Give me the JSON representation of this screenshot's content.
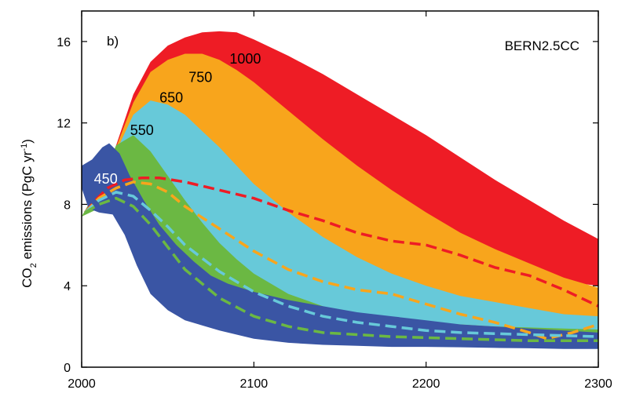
{
  "chart_data": {
    "type": "area",
    "panel_label": "b)",
    "model_label": "BERN2.5CC",
    "ylabel": {
      "main": "CO",
      "sub": "2",
      "rest": " emissions (PgC yr",
      "sup": "-1",
      "end": ")"
    },
    "xlim": [
      2000,
      2300
    ],
    "ylim": [
      0,
      17.5
    ],
    "xticks": [
      2000,
      2100,
      2200,
      2300
    ],
    "yticks": [
      0,
      4,
      8,
      12,
      16
    ],
    "grid": false,
    "bands": [
      {
        "name": "1000",
        "color": "#ee1c25",
        "label_at": [
          2095,
          15.1
        ],
        "label_color": "#000000",
        "upper": [
          [
            2000,
            7.4
          ],
          [
            2010,
            8.8
          ],
          [
            2020,
            10.9
          ],
          [
            2030,
            13.4
          ],
          [
            2040,
            15.0
          ],
          [
            2050,
            15.8
          ],
          [
            2060,
            16.2
          ],
          [
            2070,
            16.45
          ],
          [
            2080,
            16.5
          ],
          [
            2090,
            16.45
          ],
          [
            2100,
            16.1
          ],
          [
            2120,
            15.3
          ],
          [
            2140,
            14.4
          ],
          [
            2160,
            13.4
          ],
          [
            2180,
            12.4
          ],
          [
            2200,
            11.4
          ],
          [
            2220,
            10.3
          ],
          [
            2240,
            9.2
          ],
          [
            2260,
            8.2
          ],
          [
            2280,
            7.2
          ],
          [
            2300,
            6.3
          ]
        ],
        "lower": [
          [
            2000,
            7.4
          ],
          [
            2010,
            8.1
          ],
          [
            2020,
            9.0
          ],
          [
            2030,
            9.3
          ],
          [
            2040,
            9.4
          ],
          [
            2050,
            9.3
          ],
          [
            2060,
            9.1
          ],
          [
            2080,
            8.8
          ],
          [
            2100,
            8.3
          ],
          [
            2120,
            7.8
          ],
          [
            2140,
            7.3
          ],
          [
            2160,
            6.8
          ],
          [
            2180,
            6.3
          ],
          [
            2200,
            5.9
          ],
          [
            2220,
            5.4
          ],
          [
            2240,
            5.0
          ],
          [
            2260,
            4.6
          ],
          [
            2280,
            4.2
          ],
          [
            2300,
            4.0
          ]
        ]
      },
      {
        "name": "750",
        "color": "#f8a51c",
        "label_at": [
          2069,
          14.2
        ],
        "label_color": "#000000",
        "upper": [
          [
            2000,
            7.4
          ],
          [
            2010,
            8.7
          ],
          [
            2020,
            10.8
          ],
          [
            2030,
            13.0
          ],
          [
            2040,
            14.5
          ],
          [
            2050,
            15.1
          ],
          [
            2060,
            15.4
          ],
          [
            2070,
            15.4
          ],
          [
            2080,
            15.1
          ],
          [
            2090,
            14.6
          ],
          [
            2100,
            14.0
          ],
          [
            2120,
            12.6
          ],
          [
            2140,
            11.2
          ],
          [
            2160,
            9.9
          ],
          [
            2180,
            8.7
          ],
          [
            2200,
            7.6
          ],
          [
            2220,
            6.6
          ],
          [
            2240,
            5.8
          ],
          [
            2260,
            5.1
          ],
          [
            2280,
            4.4
          ],
          [
            2300,
            3.9
          ]
        ],
        "lower": [
          [
            2000,
            7.4
          ],
          [
            2010,
            8.0
          ],
          [
            2020,
            8.8
          ],
          [
            2030,
            9.0
          ],
          [
            2040,
            8.8
          ],
          [
            2050,
            8.4
          ],
          [
            2060,
            7.8
          ],
          [
            2080,
            6.8
          ],
          [
            2100,
            5.8
          ],
          [
            2120,
            5.0
          ],
          [
            2140,
            4.3
          ],
          [
            2160,
            3.8
          ],
          [
            2180,
            3.4
          ],
          [
            2200,
            3.1
          ],
          [
            2220,
            2.9
          ],
          [
            2240,
            2.7
          ],
          [
            2260,
            2.5
          ],
          [
            2280,
            2.3
          ],
          [
            2300,
            2.2
          ]
        ]
      },
      {
        "name": "650",
        "color": "#67c9d9",
        "label_at": [
          2052,
          13.2
        ],
        "label_color": "#000000",
        "upper": [
          [
            2000,
            7.4
          ],
          [
            2010,
            8.6
          ],
          [
            2020,
            10.6
          ],
          [
            2030,
            12.4
          ],
          [
            2040,
            13.1
          ],
          [
            2050,
            12.9
          ],
          [
            2060,
            12.4
          ],
          [
            2070,
            11.6
          ],
          [
            2080,
            10.8
          ],
          [
            2090,
            9.9
          ],
          [
            2100,
            9.0
          ],
          [
            2120,
            7.6
          ],
          [
            2140,
            6.4
          ],
          [
            2160,
            5.4
          ],
          [
            2180,
            4.6
          ],
          [
            2200,
            4.0
          ],
          [
            2220,
            3.5
          ],
          [
            2240,
            3.2
          ],
          [
            2260,
            2.9
          ],
          [
            2280,
            2.6
          ],
          [
            2300,
            2.5
          ]
        ],
        "lower": [
          [
            2000,
            7.4
          ],
          [
            2010,
            7.9
          ],
          [
            2020,
            8.6
          ],
          [
            2030,
            8.5
          ],
          [
            2040,
            7.9
          ],
          [
            2050,
            7.0
          ],
          [
            2060,
            6.2
          ],
          [
            2080,
            4.9
          ],
          [
            2100,
            4.0
          ],
          [
            2120,
            3.4
          ],
          [
            2140,
            2.9
          ],
          [
            2160,
            2.6
          ],
          [
            2180,
            2.4
          ],
          [
            2200,
            2.2
          ],
          [
            2220,
            2.1
          ],
          [
            2240,
            2.0
          ],
          [
            2260,
            1.9
          ],
          [
            2280,
            1.8
          ],
          [
            2300,
            1.8
          ]
        ]
      },
      {
        "name": "550",
        "color": "#6bb843",
        "label_at": [
          2035,
          11.6
        ],
        "label_color": "#000000",
        "upper": [
          [
            2000,
            7.4
          ],
          [
            2010,
            8.9
          ],
          [
            2020,
            10.9
          ],
          [
            2030,
            11.4
          ],
          [
            2040,
            10.6
          ],
          [
            2050,
            9.4
          ],
          [
            2060,
            8.2
          ],
          [
            2070,
            7.1
          ],
          [
            2080,
            6.1
          ],
          [
            2090,
            5.3
          ],
          [
            2100,
            4.6
          ],
          [
            2120,
            3.6
          ],
          [
            2140,
            3.0
          ],
          [
            2160,
            2.6
          ],
          [
            2180,
            2.4
          ],
          [
            2200,
            2.2
          ],
          [
            2220,
            2.1
          ],
          [
            2240,
            2.0
          ],
          [
            2260,
            1.95
          ],
          [
            2280,
            1.9
          ],
          [
            2300,
            1.85
          ]
        ],
        "lower": [
          [
            2000,
            7.4
          ],
          [
            2010,
            7.8
          ],
          [
            2020,
            8.1
          ],
          [
            2030,
            7.8
          ],
          [
            2040,
            6.9
          ],
          [
            2050,
            5.8
          ],
          [
            2060,
            4.8
          ],
          [
            2080,
            3.5
          ],
          [
            2100,
            2.7
          ],
          [
            2120,
            2.1
          ],
          [
            2140,
            1.8
          ],
          [
            2160,
            1.6
          ],
          [
            2180,
            1.5
          ],
          [
            2200,
            1.4
          ],
          [
            2220,
            1.35
          ],
          [
            2240,
            1.3
          ],
          [
            2260,
            1.3
          ],
          [
            2280,
            1.25
          ],
          [
            2300,
            1.2
          ]
        ]
      },
      {
        "name": "450",
        "color": "#3a55a4",
        "label_at": [
          2014,
          9.2
        ],
        "label_color": "#ffffff",
        "upper": [
          [
            2000,
            9.9
          ],
          [
            2006,
            10.2
          ],
          [
            2012,
            10.8
          ],
          [
            2016,
            11.0
          ],
          [
            2022,
            10.5
          ],
          [
            2028,
            9.4
          ],
          [
            2036,
            8.2
          ],
          [
            2045,
            7.0
          ],
          [
            2055,
            6.0
          ],
          [
            2065,
            5.2
          ],
          [
            2075,
            4.5
          ],
          [
            2085,
            4.1
          ],
          [
            2100,
            3.7
          ],
          [
            2120,
            3.3
          ],
          [
            2140,
            3.0
          ],
          [
            2160,
            2.7
          ],
          [
            2180,
            2.5
          ],
          [
            2200,
            2.3
          ],
          [
            2220,
            2.1
          ],
          [
            2240,
            2.0
          ],
          [
            2260,
            1.9
          ],
          [
            2280,
            1.8
          ],
          [
            2300,
            1.7
          ]
        ],
        "lower": [
          [
            2000,
            8.8
          ],
          [
            2004,
            7.8
          ],
          [
            2010,
            7.6
          ],
          [
            2018,
            7.5
          ],
          [
            2025,
            6.5
          ],
          [
            2032,
            5.0
          ],
          [
            2040,
            3.6
          ],
          [
            2050,
            2.8
          ],
          [
            2060,
            2.3
          ],
          [
            2080,
            1.8
          ],
          [
            2100,
            1.4
          ],
          [
            2120,
            1.2
          ],
          [
            2140,
            1.1
          ],
          [
            2160,
            1.05
          ],
          [
            2180,
            1.0
          ],
          [
            2200,
            1.0
          ],
          [
            2220,
            0.98
          ],
          [
            2240,
            0.95
          ],
          [
            2260,
            0.93
          ],
          [
            2280,
            0.9
          ],
          [
            2300,
            0.9
          ]
        ]
      }
    ],
    "dashed_series": [
      {
        "name": "1000",
        "color": "#ee1c25",
        "points": [
          [
            2002,
            7.6
          ],
          [
            2008,
            8.2
          ],
          [
            2015,
            8.8
          ],
          [
            2025,
            9.2
          ],
          [
            2035,
            9.3
          ],
          [
            2045,
            9.3
          ],
          [
            2060,
            9.1
          ],
          [
            2080,
            8.7
          ],
          [
            2100,
            8.3
          ],
          [
            2120,
            7.7
          ],
          [
            2140,
            7.2
          ],
          [
            2160,
            6.6
          ],
          [
            2180,
            6.2
          ],
          [
            2200,
            6.0
          ],
          [
            2220,
            5.5
          ],
          [
            2240,
            4.9
          ],
          [
            2260,
            4.5
          ],
          [
            2280,
            3.8
          ],
          [
            2300,
            3.0
          ]
        ]
      },
      {
        "name": "750",
        "color": "#f8a51c",
        "points": [
          [
            2002,
            7.6
          ],
          [
            2010,
            8.3
          ],
          [
            2020,
            8.8
          ],
          [
            2030,
            9.1
          ],
          [
            2040,
            9.0
          ],
          [
            2050,
            8.6
          ],
          [
            2060,
            7.9
          ],
          [
            2080,
            6.8
          ],
          [
            2100,
            5.7
          ],
          [
            2120,
            4.8
          ],
          [
            2140,
            4.2
          ],
          [
            2160,
            3.8
          ],
          [
            2180,
            3.6
          ],
          [
            2200,
            3.1
          ],
          [
            2220,
            2.6
          ],
          [
            2240,
            2.2
          ],
          [
            2260,
            1.7
          ],
          [
            2270,
            1.4
          ],
          [
            2285,
            1.7
          ],
          [
            2300,
            2.1
          ]
        ]
      },
      {
        "name": "650",
        "color": "#67c9d9",
        "points": [
          [
            2002,
            7.6
          ],
          [
            2010,
            8.2
          ],
          [
            2020,
            8.6
          ],
          [
            2030,
            8.4
          ],
          [
            2040,
            7.7
          ],
          [
            2050,
            6.9
          ],
          [
            2060,
            6.0
          ],
          [
            2080,
            4.7
          ],
          [
            2100,
            3.7
          ],
          [
            2120,
            3.0
          ],
          [
            2140,
            2.5
          ],
          [
            2160,
            2.2
          ],
          [
            2180,
            2.0
          ],
          [
            2200,
            1.8
          ],
          [
            2220,
            1.7
          ],
          [
            2240,
            1.65
          ],
          [
            2260,
            1.6
          ],
          [
            2280,
            1.55
          ],
          [
            2300,
            1.5
          ]
        ]
      },
      {
        "name": "550",
        "color": "#6bb843",
        "points": [
          [
            2002,
            7.6
          ],
          [
            2010,
            8.0
          ],
          [
            2020,
            8.3
          ],
          [
            2030,
            7.9
          ],
          [
            2040,
            7.0
          ],
          [
            2050,
            5.9
          ],
          [
            2060,
            4.8
          ],
          [
            2080,
            3.4
          ],
          [
            2100,
            2.5
          ],
          [
            2120,
            2.0
          ],
          [
            2140,
            1.7
          ],
          [
            2160,
            1.6
          ],
          [
            2180,
            1.5
          ],
          [
            2200,
            1.45
          ],
          [
            2220,
            1.4
          ],
          [
            2240,
            1.35
          ],
          [
            2260,
            1.3
          ],
          [
            2280,
            1.3
          ],
          [
            2300,
            1.3
          ]
        ]
      }
    ]
  }
}
